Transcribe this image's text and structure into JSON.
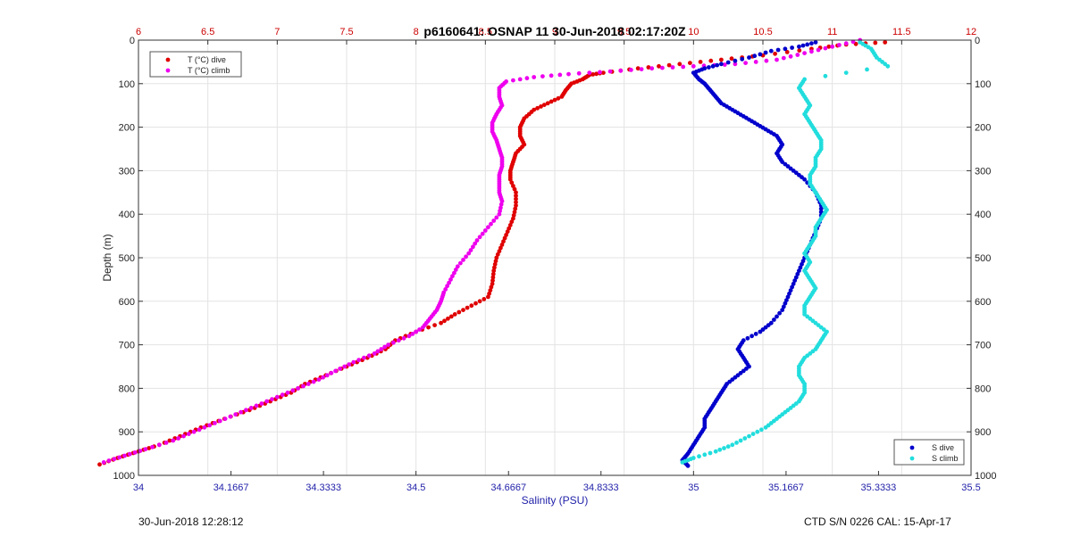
{
  "title": "p6160641: OSNAP 11 30-Jun-2018 02:17:20Z",
  "footer": {
    "left": "30-Jun-2018 12:28:12",
    "right": "CTD S/N 0226  CAL: 15-Apr-17"
  },
  "colors": {
    "temp_axis": "#cc0000",
    "sal_axis": "#2222aa",
    "t_dive": "#e00000",
    "t_climb": "#ee00ee",
    "s_dive": "#0000cc",
    "s_climb": "#22dddd"
  },
  "chart_data": {
    "type": "scatter",
    "title": "p6160641: OSNAP 11 30-Jun-2018 02:17:20Z",
    "ylabel": "Depth (m)",
    "xlabel_bottom": "Salinity (PSU)",
    "xlabel_top": "",
    "ylim": [
      0,
      1000
    ],
    "y_reversed": true,
    "yticks": [
      "0",
      "100",
      "200",
      "300",
      "400",
      "500",
      "600",
      "700",
      "800",
      "900",
      "1000"
    ],
    "x_top": {
      "lim": [
        6,
        12
      ],
      "ticks": [
        "6",
        "6.5",
        "7",
        "7.5",
        "8",
        "8.5",
        "9",
        "9.5",
        "10",
        "10.5",
        "11",
        "11.5",
        "12"
      ]
    },
    "x_bottom": {
      "lim": [
        34,
        35.5
      ],
      "ticks": [
        "34",
        "34.1667",
        "34.3333",
        "34.5",
        "34.6667",
        "34.8333",
        "35",
        "35.1667",
        "35.3333",
        "35.5"
      ]
    },
    "grid": true,
    "legends": [
      {
        "position": "top-left",
        "entries": [
          "T (°C) dive",
          "T (°C) climb"
        ]
      },
      {
        "position": "bottom-right",
        "entries": [
          "S dive",
          "S climb"
        ]
      }
    ],
    "series": [
      {
        "name": "T (°C) dive",
        "axis": "top",
        "points": [
          [
            11.38,
            5
          ],
          [
            11.1,
            10
          ],
          [
            10.85,
            20
          ],
          [
            10.5,
            35
          ],
          [
            10.2,
            45
          ],
          [
            9.9,
            55
          ],
          [
            9.6,
            65
          ],
          [
            9.35,
            75
          ],
          [
            9.25,
            80
          ],
          [
            9.2,
            90
          ],
          [
            9.12,
            100
          ],
          [
            9.08,
            115
          ],
          [
            9.05,
            130
          ],
          [
            8.95,
            145
          ],
          [
            8.85,
            160
          ],
          [
            8.78,
            180
          ],
          [
            8.75,
            200
          ],
          [
            8.75,
            220
          ],
          [
            8.78,
            240
          ],
          [
            8.72,
            260
          ],
          [
            8.7,
            280
          ],
          [
            8.68,
            300
          ],
          [
            8.68,
            320
          ],
          [
            8.72,
            350
          ],
          [
            8.72,
            380
          ],
          [
            8.7,
            410
          ],
          [
            8.66,
            440
          ],
          [
            8.62,
            470
          ],
          [
            8.58,
            500
          ],
          [
            8.56,
            530
          ],
          [
            8.55,
            560
          ],
          [
            8.52,
            590
          ],
          [
            8.4,
            610
          ],
          [
            8.28,
            630
          ],
          [
            8.18,
            650
          ],
          [
            8.0,
            670
          ],
          [
            7.85,
            690
          ],
          [
            7.78,
            710
          ],
          [
            7.65,
            730
          ],
          [
            7.5,
            750
          ],
          [
            7.35,
            770
          ],
          [
            7.2,
            790
          ],
          [
            7.1,
            810
          ],
          [
            6.95,
            830
          ],
          [
            6.8,
            850
          ],
          [
            6.62,
            870
          ],
          [
            6.45,
            890
          ],
          [
            6.3,
            910
          ],
          [
            6.15,
            930
          ],
          [
            6.0,
            945
          ],
          [
            5.85,
            960
          ],
          [
            5.72,
            975
          ]
        ]
      },
      {
        "name": "T (°C) climb",
        "axis": "top",
        "points": [
          [
            11.2,
            0
          ],
          [
            11.0,
            15
          ],
          [
            10.8,
            30
          ],
          [
            10.6,
            45
          ],
          [
            10.3,
            55
          ],
          [
            10.0,
            60
          ],
          [
            9.7,
            65
          ],
          [
            9.4,
            72
          ],
          [
            9.1,
            78
          ],
          [
            8.85,
            85
          ],
          [
            8.65,
            95
          ],
          [
            8.6,
            110
          ],
          [
            8.6,
            130
          ],
          [
            8.62,
            150
          ],
          [
            8.58,
            170
          ],
          [
            8.55,
            190
          ],
          [
            8.55,
            210
          ],
          [
            8.58,
            230
          ],
          [
            8.6,
            250
          ],
          [
            8.62,
            270
          ],
          [
            8.62,
            290
          ],
          [
            8.6,
            310
          ],
          [
            8.6,
            330
          ],
          [
            8.6,
            350
          ],
          [
            8.62,
            370
          ],
          [
            8.6,
            400
          ],
          [
            8.52,
            430
          ],
          [
            8.44,
            460
          ],
          [
            8.38,
            490
          ],
          [
            8.3,
            520
          ],
          [
            8.25,
            550
          ],
          [
            8.2,
            580
          ],
          [
            8.18,
            600
          ],
          [
            8.15,
            620
          ],
          [
            8.1,
            640
          ],
          [
            8.05,
            660
          ],
          [
            7.95,
            680
          ],
          [
            7.8,
            700
          ],
          [
            7.7,
            720
          ],
          [
            7.55,
            740
          ],
          [
            7.42,
            760
          ],
          [
            7.3,
            780
          ],
          [
            7.15,
            800
          ],
          [
            7.0,
            820
          ],
          [
            6.85,
            840
          ],
          [
            6.7,
            860
          ],
          [
            6.55,
            880
          ],
          [
            6.4,
            900
          ],
          [
            6.25,
            920
          ],
          [
            6.05,
            940
          ],
          [
            5.9,
            955
          ],
          [
            5.75,
            970
          ]
        ]
      },
      {
        "name": "S dive",
        "axis": "bottom",
        "points": [
          [
            35.22,
            5
          ],
          [
            35.19,
            15
          ],
          [
            35.14,
            25
          ],
          [
            35.1,
            40
          ],
          [
            35.05,
            55
          ],
          [
            35.02,
            65
          ],
          [
            35.0,
            75
          ],
          [
            35.01,
            90
          ],
          [
            35.02,
            100
          ],
          [
            35.03,
            115
          ],
          [
            35.04,
            130
          ],
          [
            35.05,
            145
          ],
          [
            35.07,
            160
          ],
          [
            35.09,
            175
          ],
          [
            35.11,
            190
          ],
          [
            35.13,
            205
          ],
          [
            35.15,
            220
          ],
          [
            35.16,
            240
          ],
          [
            35.15,
            260
          ],
          [
            35.16,
            280
          ],
          [
            35.18,
            300
          ],
          [
            35.2,
            320
          ],
          [
            35.22,
            350
          ],
          [
            35.23,
            380
          ],
          [
            35.23,
            410
          ],
          [
            35.22,
            440
          ],
          [
            35.21,
            470
          ],
          [
            35.2,
            500
          ],
          [
            35.19,
            530
          ],
          [
            35.18,
            560
          ],
          [
            35.17,
            590
          ],
          [
            35.16,
            620
          ],
          [
            35.14,
            650
          ],
          [
            35.12,
            670
          ],
          [
            35.09,
            690
          ],
          [
            35.08,
            710
          ],
          [
            35.09,
            730
          ],
          [
            35.1,
            750
          ],
          [
            35.08,
            770
          ],
          [
            35.06,
            790
          ],
          [
            35.05,
            810
          ],
          [
            35.04,
            830
          ],
          [
            35.03,
            850
          ],
          [
            35.02,
            870
          ],
          [
            35.02,
            890
          ],
          [
            35.01,
            910
          ],
          [
            35.0,
            930
          ],
          [
            34.99,
            950
          ],
          [
            34.98,
            965
          ],
          [
            34.99,
            978
          ]
        ]
      },
      {
        "name": "S climb",
        "axis": "bottom",
        "points": [
          [
            35.3,
            5
          ],
          [
            35.32,
            20
          ],
          [
            35.33,
            40
          ],
          [
            35.35,
            60
          ],
          [
            35.2,
            90
          ],
          [
            35.19,
            110
          ],
          [
            35.2,
            130
          ],
          [
            35.21,
            150
          ],
          [
            35.2,
            170
          ],
          [
            35.21,
            190
          ],
          [
            35.22,
            210
          ],
          [
            35.23,
            230
          ],
          [
            35.23,
            250
          ],
          [
            35.22,
            270
          ],
          [
            35.22,
            290
          ],
          [
            35.21,
            310
          ],
          [
            35.21,
            330
          ],
          [
            35.22,
            350
          ],
          [
            35.23,
            370
          ],
          [
            35.24,
            390
          ],
          [
            35.23,
            410
          ],
          [
            35.22,
            430
          ],
          [
            35.22,
            450
          ],
          [
            35.21,
            470
          ],
          [
            35.2,
            490
          ],
          [
            35.21,
            510
          ],
          [
            35.2,
            530
          ],
          [
            35.21,
            550
          ],
          [
            35.22,
            570
          ],
          [
            35.21,
            590
          ],
          [
            35.2,
            610
          ],
          [
            35.2,
            630
          ],
          [
            35.22,
            650
          ],
          [
            35.24,
            670
          ],
          [
            35.23,
            690
          ],
          [
            35.22,
            710
          ],
          [
            35.2,
            730
          ],
          [
            35.19,
            750
          ],
          [
            35.19,
            770
          ],
          [
            35.2,
            790
          ],
          [
            35.2,
            810
          ],
          [
            35.19,
            830
          ],
          [
            35.17,
            850
          ],
          [
            35.15,
            870
          ],
          [
            35.13,
            890
          ],
          [
            35.1,
            910
          ],
          [
            35.07,
            930
          ],
          [
            35.04,
            945
          ],
          [
            35.0,
            960
          ],
          [
            34.98,
            970
          ]
        ]
      }
    ]
  }
}
